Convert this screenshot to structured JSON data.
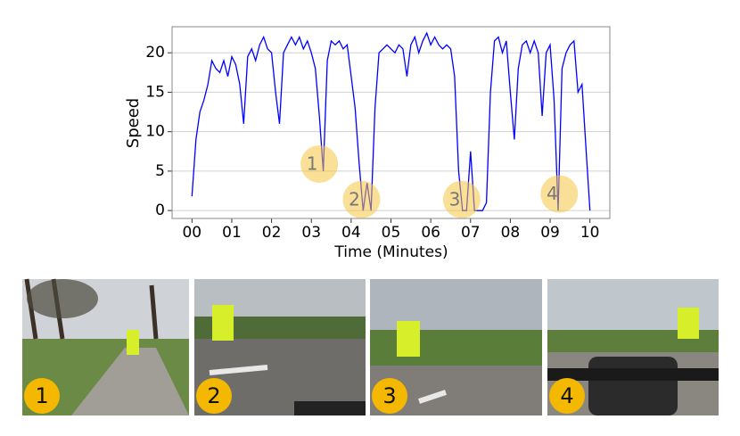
{
  "chart_data": {
    "type": "line",
    "ylabel": "Speed",
    "xlabel": "Time (Minutes)",
    "x": [
      0.0,
      0.1,
      0.2,
      0.3,
      0.4,
      0.5,
      0.6,
      0.7,
      0.8,
      0.9,
      1.0,
      1.1,
      1.2,
      1.3,
      1.4,
      1.5,
      1.6,
      1.7,
      1.8,
      1.9,
      2.0,
      2.1,
      2.2,
      2.3,
      2.4,
      2.5,
      2.6,
      2.7,
      2.8,
      2.9,
      3.0,
      3.1,
      3.2,
      3.3,
      3.4,
      3.5,
      3.6,
      3.7,
      3.8,
      3.9,
      4.0,
      4.1,
      4.2,
      4.3,
      4.4,
      4.5,
      4.6,
      4.7,
      4.8,
      4.9,
      5.0,
      5.1,
      5.2,
      5.3,
      5.4,
      5.5,
      5.6,
      5.7,
      5.8,
      5.9,
      6.0,
      6.1,
      6.2,
      6.3,
      6.4,
      6.5,
      6.6,
      6.7,
      6.8,
      6.9,
      7.0,
      7.1,
      7.2,
      7.3,
      7.4,
      7.5,
      7.6,
      7.7,
      7.8,
      7.9,
      8.0,
      8.1,
      8.2,
      8.3,
      8.4,
      8.5,
      8.6,
      8.7,
      8.8,
      8.9,
      9.0,
      9.1,
      9.2,
      9.3,
      9.4,
      9.5,
      9.6,
      9.7,
      9.8,
      9.9,
      10.0
    ],
    "series": [
      {
        "color": "#0000ff",
        "values": [
          1.8,
          9,
          12.5,
          14,
          16,
          19,
          18,
          17.5,
          19,
          17,
          19.5,
          18.5,
          16,
          11,
          19.5,
          20.5,
          19,
          21,
          22,
          20.5,
          20,
          15,
          11,
          20,
          21,
          22,
          21,
          22,
          20.5,
          21.5,
          20,
          18,
          12,
          5,
          19,
          21.5,
          21,
          21.5,
          20.5,
          21,
          17,
          13,
          6,
          0,
          3.5,
          0,
          13,
          20,
          20.5,
          21,
          20.5,
          20,
          21,
          20.5,
          17,
          21,
          22,
          20,
          21.5,
          22.5,
          21,
          22,
          21,
          20.5,
          21,
          20.5,
          17,
          5,
          0,
          0,
          7.5,
          0,
          0,
          0,
          1,
          15,
          21.5,
          22,
          20,
          21.5,
          15,
          9,
          18,
          21,
          21.5,
          20,
          21.5,
          20,
          12,
          20,
          21,
          14,
          0,
          18,
          20,
          21,
          21.5,
          15,
          16,
          8,
          0
        ]
      }
    ],
    "xlim": [
      -0.5,
      10.5
    ],
    "ylim": [
      -1,
      23.3
    ],
    "xticks": [
      {
        "value": 0,
        "label": "00"
      },
      {
        "value": 1,
        "label": "01"
      },
      {
        "value": 2,
        "label": "02"
      },
      {
        "value": 3,
        "label": "03"
      },
      {
        "value": 4,
        "label": "04"
      },
      {
        "value": 5,
        "label": "05"
      },
      {
        "value": 6,
        "label": "06"
      },
      {
        "value": 7,
        "label": "07"
      },
      {
        "value": 8,
        "label": "08"
      },
      {
        "value": 9,
        "label": "09"
      },
      10
    ],
    "yticks": [
      0,
      5,
      10,
      15,
      20
    ],
    "grid": true,
    "annotations": [
      {
        "label": "1",
        "x": 3.2,
        "y": 5.9
      },
      {
        "label": "2",
        "x": 4.26,
        "y": 1.4
      },
      {
        "label": "3",
        "x": 6.78,
        "y": 1.4
      },
      {
        "label": "4",
        "x": 9.23,
        "y": 2.1
      }
    ]
  },
  "photos": [
    "1",
    "2",
    "3",
    "4"
  ]
}
